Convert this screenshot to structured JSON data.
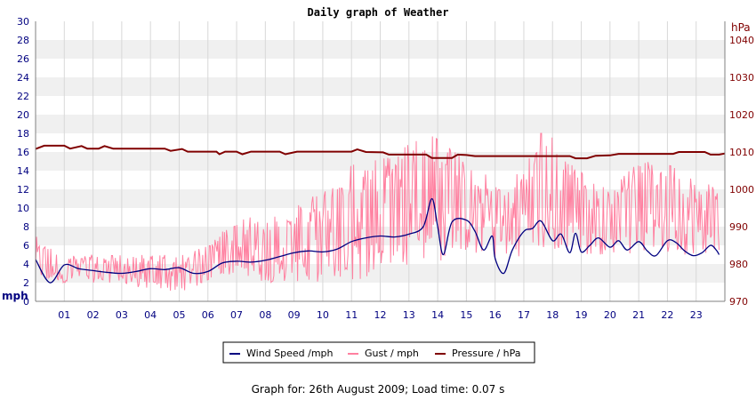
{
  "chart_data": {
    "type": "line",
    "title": "Daily graph of Weather",
    "y_left": {
      "label": "mph",
      "min": 0,
      "max": 30,
      "ticks": [
        0,
        2,
        4,
        6,
        8,
        10,
        12,
        14,
        16,
        18,
        20,
        22,
        24,
        26,
        28,
        30
      ]
    },
    "y_right": {
      "label": "hPa",
      "min": 970,
      "max": 1045,
      "ticks": [
        970,
        980,
        990,
        1000,
        1010,
        1020,
        1030,
        1040
      ]
    },
    "x": {
      "min": 0,
      "max": 24,
      "tick_labels": [
        "01",
        "02",
        "03",
        "04",
        "05",
        "06",
        "07",
        "08",
        "09",
        "10",
        "11",
        "12",
        "13",
        "14",
        "15",
        "16",
        "17",
        "18",
        "19",
        "20",
        "21",
        "22",
        "23"
      ]
    },
    "grid": true,
    "legend_position": "bottom",
    "series": [
      {
        "name": "Wind Speed /mph",
        "axis": "left",
        "color": "#000080",
        "points": [
          [
            0,
            4.5
          ],
          [
            0.5,
            2
          ],
          [
            1,
            3.9
          ],
          [
            1.5,
            3.5
          ],
          [
            2,
            3.3
          ],
          [
            2.5,
            3.1
          ],
          [
            3,
            3
          ],
          [
            3.5,
            3.2
          ],
          [
            4,
            3.5
          ],
          [
            4.5,
            3.4
          ],
          [
            5,
            3.6
          ],
          [
            5.5,
            3
          ],
          [
            6,
            3.2
          ],
          [
            6.5,
            4.1
          ],
          [
            7,
            4.3
          ],
          [
            7.5,
            4.2
          ],
          [
            8,
            4.4
          ],
          [
            8.5,
            4.8
          ],
          [
            9,
            5.2
          ],
          [
            9.5,
            5.4
          ],
          [
            10,
            5.3
          ],
          [
            10.5,
            5.6
          ],
          [
            11,
            6.4
          ],
          [
            11.5,
            6.8
          ],
          [
            12,
            7
          ],
          [
            12.5,
            6.9
          ],
          [
            13,
            7.2
          ],
          [
            13.5,
            8
          ],
          [
            13.8,
            11
          ],
          [
            14,
            8
          ],
          [
            14.2,
            5
          ],
          [
            14.5,
            8.5
          ],
          [
            15,
            8.7
          ],
          [
            15.3,
            7.5
          ],
          [
            15.6,
            5.5
          ],
          [
            15.9,
            7
          ],
          [
            16,
            4.6
          ],
          [
            16.3,
            3
          ],
          [
            16.6,
            5.5
          ],
          [
            17,
            7.5
          ],
          [
            17.3,
            7.8
          ],
          [
            17.6,
            8.6
          ],
          [
            18,
            6.5
          ],
          [
            18.3,
            7.2
          ],
          [
            18.6,
            5.2
          ],
          [
            18.8,
            7.3
          ],
          [
            19,
            5.3
          ],
          [
            19.3,
            6
          ],
          [
            19.6,
            6.8
          ],
          [
            20,
            5.8
          ],
          [
            20.3,
            6.5
          ],
          [
            20.6,
            5.5
          ],
          [
            21,
            6.4
          ],
          [
            21.3,
            5.4
          ],
          [
            21.6,
            4.9
          ],
          [
            22,
            6.5
          ],
          [
            22.3,
            6.3
          ],
          [
            22.6,
            5.4
          ],
          [
            22.9,
            4.9
          ],
          [
            23.2,
            5.2
          ],
          [
            23.5,
            6
          ],
          [
            23.7,
            5.5
          ],
          [
            23.8,
            5
          ]
        ]
      },
      {
        "name": "Gust / mph",
        "axis": "left",
        "color": "#ff80a0",
        "envelope": [
          [
            0,
            2,
            7
          ],
          [
            1,
            2,
            5
          ],
          [
            2,
            2,
            5
          ],
          [
            3,
            2,
            5
          ],
          [
            4,
            1,
            5
          ],
          [
            5,
            1,
            5
          ],
          [
            6,
            2,
            6
          ],
          [
            7,
            3,
            9
          ],
          [
            8,
            2,
            9
          ],
          [
            9,
            2,
            10
          ],
          [
            10,
            2,
            12
          ],
          [
            11,
            2,
            15
          ],
          [
            12,
            3,
            16
          ],
          [
            13,
            4,
            17
          ],
          [
            14,
            4,
            18
          ],
          [
            15,
            5,
            15
          ],
          [
            16,
            4,
            13
          ],
          [
            17,
            5,
            15
          ],
          [
            18,
            5,
            18
          ],
          [
            19,
            5,
            14
          ],
          [
            20,
            5,
            12
          ],
          [
            21,
            5,
            15
          ],
          [
            22,
            5,
            15
          ],
          [
            23,
            5,
            14
          ],
          [
            24,
            5,
            12
          ]
        ],
        "peak": [
          17.6,
          18
        ]
      },
      {
        "name": "Pressure / hPa",
        "axis": "right",
        "color": "#800000",
        "points": [
          [
            0,
            1010.8
          ],
          [
            0.3,
            1011.7
          ],
          [
            1,
            1011.7
          ],
          [
            1.2,
            1010.9
          ],
          [
            1.6,
            1011.6
          ],
          [
            1.8,
            1010.9
          ],
          [
            2.2,
            1010.9
          ],
          [
            2.4,
            1011.6
          ],
          [
            2.7,
            1010.9
          ],
          [
            4.5,
            1010.9
          ],
          [
            4.7,
            1010.3
          ],
          [
            5.1,
            1010.8
          ],
          [
            5.3,
            1010.1
          ],
          [
            6.3,
            1010.1
          ],
          [
            6.4,
            1009.4
          ],
          [
            6.6,
            1010.1
          ],
          [
            7,
            1010.1
          ],
          [
            7.2,
            1009.4
          ],
          [
            7.5,
            1010.1
          ],
          [
            8.5,
            1010.1
          ],
          [
            8.7,
            1009.4
          ],
          [
            9.1,
            1010.1
          ],
          [
            11,
            1010.1
          ],
          [
            11.2,
            1010.7
          ],
          [
            11.5,
            1010
          ],
          [
            12.1,
            1009.9
          ],
          [
            12.3,
            1009.3
          ],
          [
            13.6,
            1009.3
          ],
          [
            13.8,
            1008.4
          ],
          [
            14.5,
            1008.4
          ],
          [
            14.7,
            1009.3
          ],
          [
            15,
            1009.2
          ],
          [
            15.3,
            1008.9
          ],
          [
            18.6,
            1008.9
          ],
          [
            18.8,
            1008.3
          ],
          [
            19.2,
            1008.3
          ],
          [
            19.5,
            1009
          ],
          [
            20,
            1009.1
          ],
          [
            20.3,
            1009.5
          ],
          [
            22.2,
            1009.5
          ],
          [
            22.4,
            1010
          ],
          [
            23.3,
            1010
          ],
          [
            23.5,
            1009.3
          ],
          [
            23.8,
            1009.3
          ],
          [
            24,
            1009.6
          ]
        ]
      }
    ]
  },
  "footer": "Graph for: 26th August 2009; Load time: 0.07 s",
  "colors": {
    "wind": "#000080",
    "gust": "#ff80a0",
    "pressure": "#800000",
    "band": "#f0f0f0",
    "left_axis": "#000080",
    "right_axis": "#800000"
  }
}
